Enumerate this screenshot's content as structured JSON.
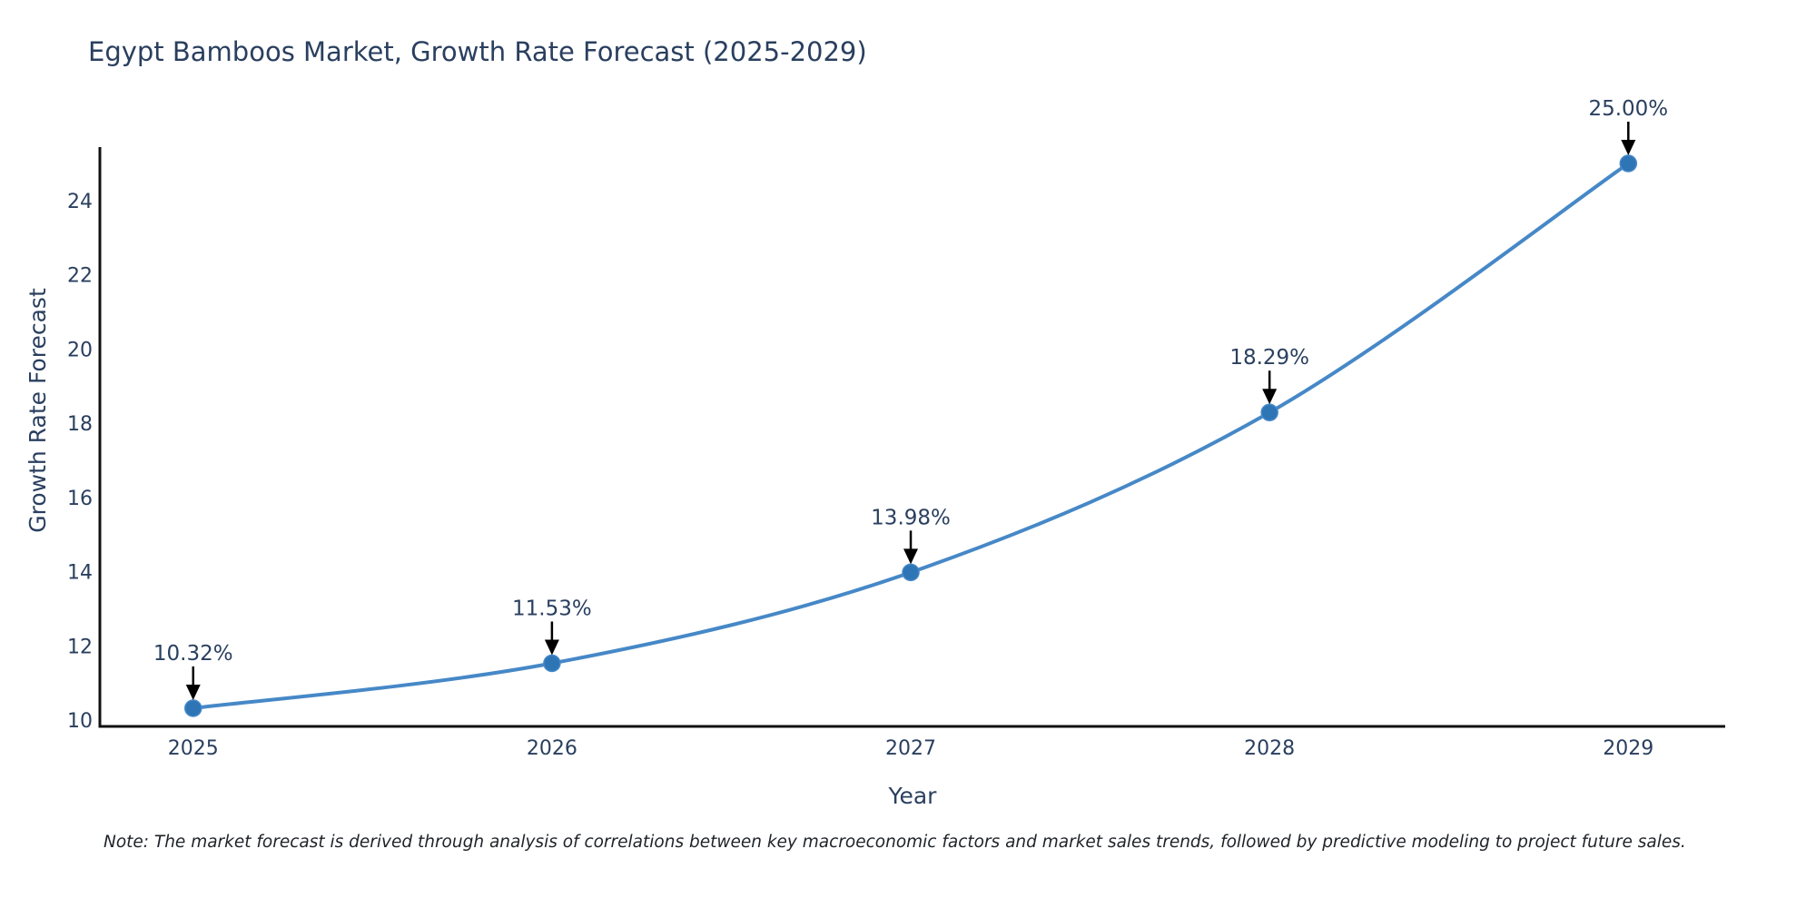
{
  "title": "Egypt Bamboos Market, Growth Rate Forecast (2025-2029)",
  "note": "Note: The market forecast is derived through analysis of correlations between key macroeconomic factors and market sales trends, followed by predictive modeling to project future sales.",
  "chart_data": {
    "type": "line",
    "title": "Egypt Bamboos Market, Growth Rate Forecast (2025-2029)",
    "xlabel": "Year",
    "ylabel": "Growth Rate Forecast",
    "categories": [
      "2025",
      "2026",
      "2027",
      "2028",
      "2029"
    ],
    "x": [
      2025,
      2026,
      2027,
      2028,
      2029
    ],
    "values": [
      10.32,
      11.53,
      13.98,
      18.29,
      25.0
    ],
    "point_labels": [
      "10.32%",
      "11.53%",
      "13.98%",
      "18.29%",
      "25.00%"
    ],
    "yticks": [
      10,
      12,
      14,
      16,
      18,
      20,
      22,
      24
    ],
    "ylim": [
      9.83,
      25.44
    ],
    "xlim": [
      2024.74,
      2029.27
    ],
    "grid": false,
    "legend_position": "none",
    "smooth": true,
    "line_color": "#4688c7",
    "marker_color": "#2e75b5",
    "text_color": "#2a3f5f",
    "axis_color": "#111111",
    "annotation_arrow_color": "#000000"
  }
}
